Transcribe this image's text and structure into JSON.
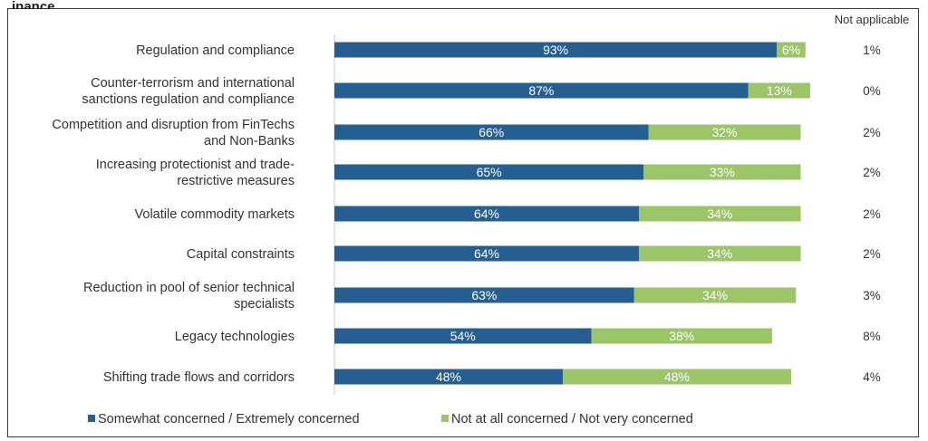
{
  "header_fragment": "inance",
  "colors": {
    "concerned": "#255e91",
    "not_concerned": "#9bc567",
    "axis": "#c8c8c8"
  },
  "chart_data": {
    "type": "bar",
    "orientation": "horizontal",
    "stacked": true,
    "categories": [
      [
        "Regulation and compliance"
      ],
      [
        "Counter-terrorism and international",
        "sanctions regulation and compliance"
      ],
      [
        "Competition and disruption from FinTechs",
        "and Non-Banks"
      ],
      [
        "Increasing protectionist and trade-",
        "restrictive measures"
      ],
      [
        "Volatile commodity markets"
      ],
      [
        "Capital constraints"
      ],
      [
        "Reduction in pool of senior technical",
        "specialists"
      ],
      [
        "Legacy technologies"
      ],
      [
        "Shifting trade flows and corridors"
      ]
    ],
    "series": [
      {
        "name": "Somewhat concerned / Extremely concerned",
        "values": [
          93,
          87,
          66,
          65,
          64,
          64,
          63,
          54,
          48
        ],
        "labels": [
          "93%",
          "87%",
          "66%",
          "65%",
          "64%",
          "64%",
          "63%",
          "54%",
          "48%"
        ]
      },
      {
        "name": "Not at all concerned / Not very concerned",
        "values": [
          6,
          13,
          32,
          33,
          34,
          34,
          34,
          38,
          48
        ],
        "labels": [
          "6%",
          "13%",
          "32%",
          "33%",
          "34%",
          "34%",
          "34%",
          "38%",
          "48%"
        ]
      }
    ],
    "not_applicable": {
      "header": "Not applicable",
      "values": [
        1,
        0,
        2,
        2,
        2,
        2,
        3,
        8,
        4
      ],
      "labels": [
        "1%",
        "0%",
        "2%",
        "2%",
        "2%",
        "2%",
        "3%",
        "8%",
        "4%"
      ]
    },
    "xlim": [
      0,
      100
    ],
    "legend_position": "bottom-left",
    "grid": false
  }
}
